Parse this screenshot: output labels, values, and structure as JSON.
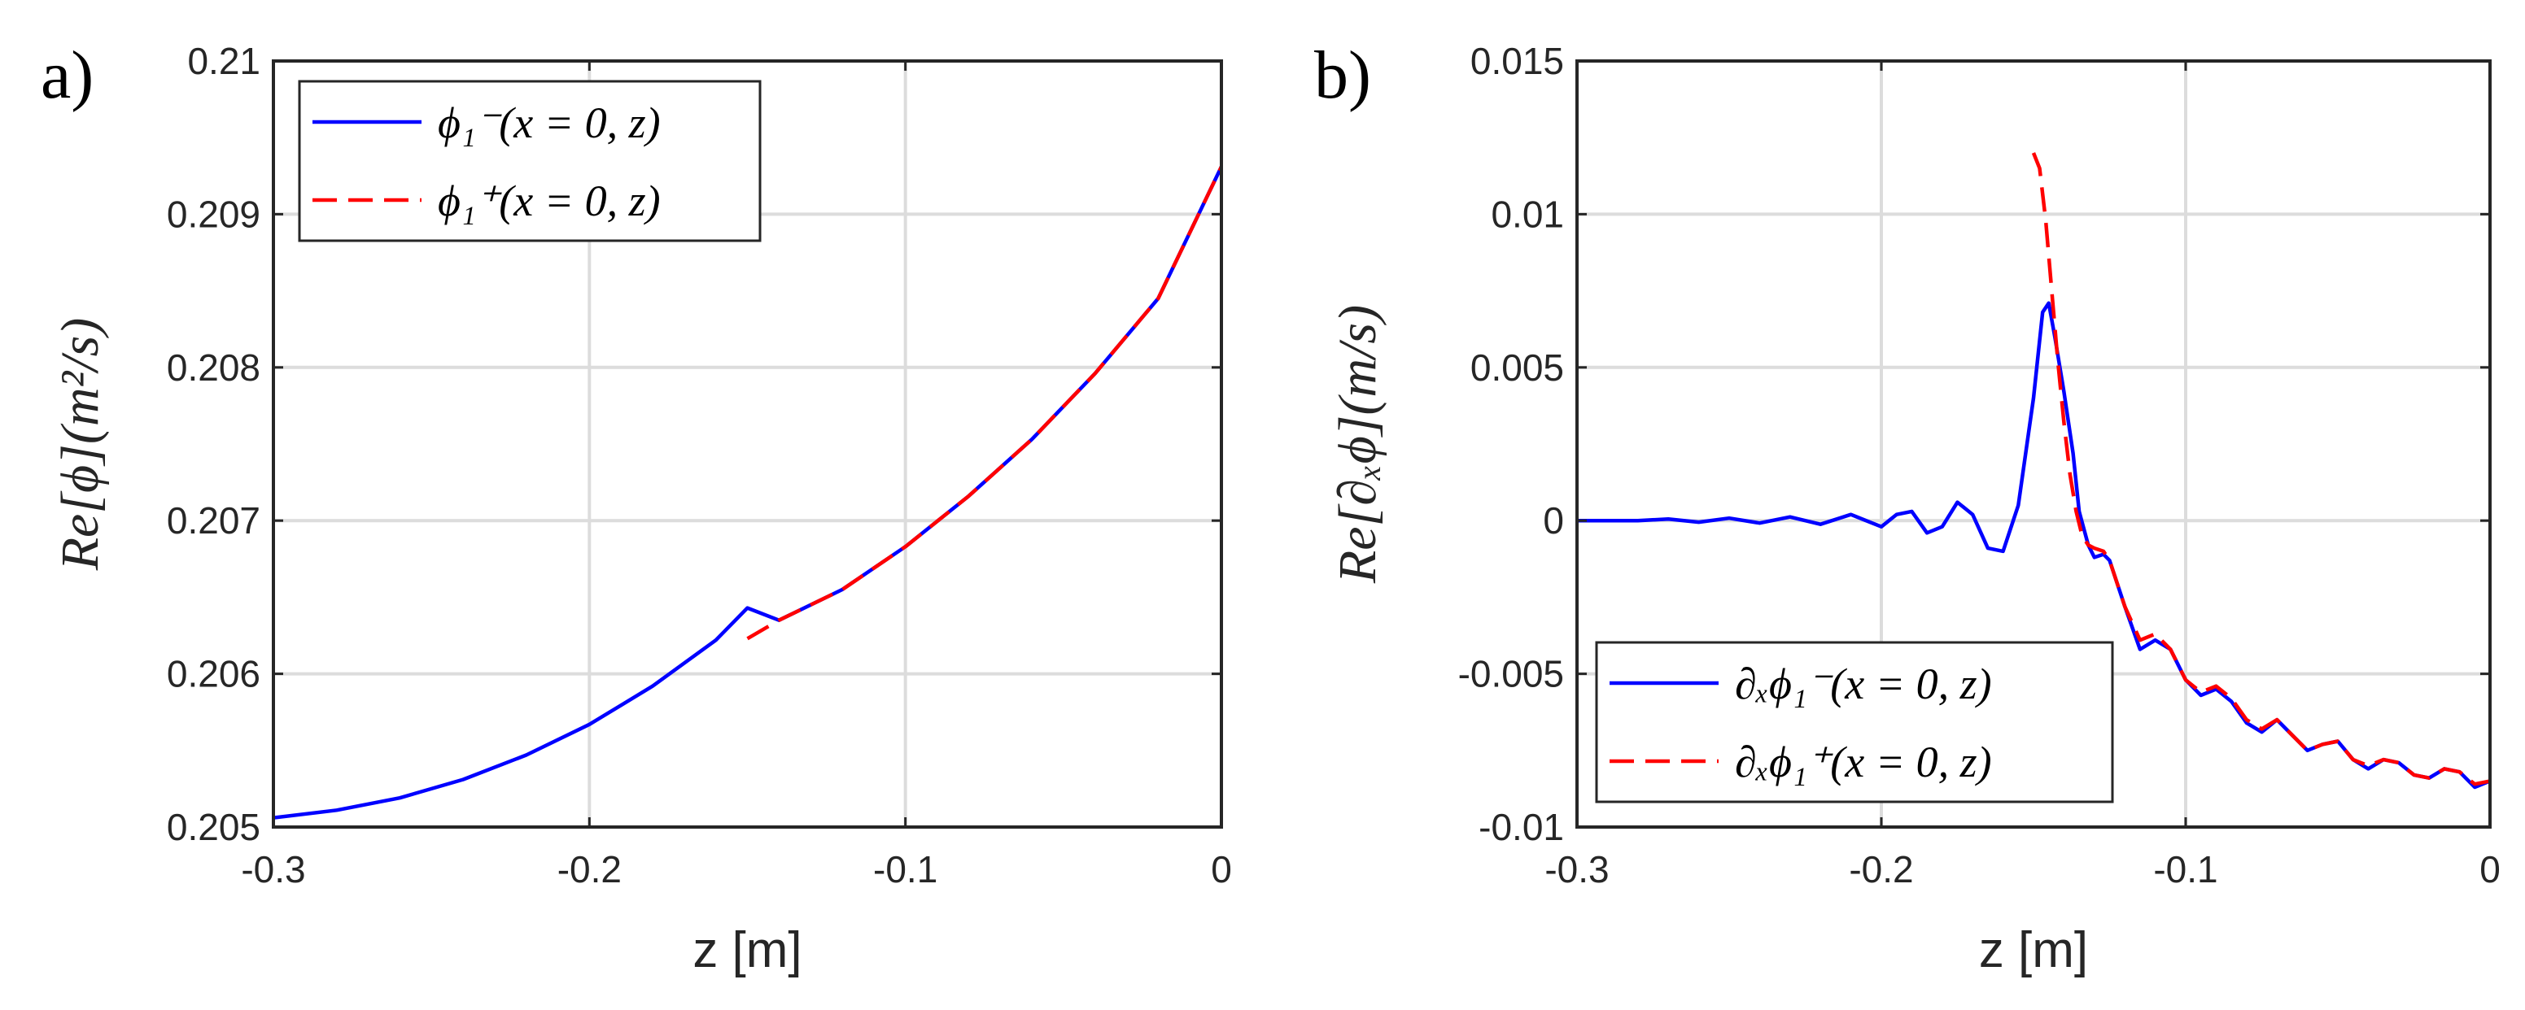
{
  "chart_data": [
    {
      "type": "line",
      "panel_label": "a)",
      "xlabel": "z [m]",
      "ylabel": "Re[ϕ](m²/s)",
      "xlim": [
        -0.3,
        0
      ],
      "ylim": [
        0.205,
        0.21
      ],
      "xticks": [
        -0.3,
        -0.2,
        -0.1,
        0
      ],
      "xtick_labels": [
        "-0.3",
        "-0.2",
        "-0.1",
        "0"
      ],
      "yticks": [
        0.205,
        0.206,
        0.207,
        0.208,
        0.209,
        0.21
      ],
      "ytick_labels": [
        "0.205",
        "0.206",
        "0.207",
        "0.208",
        "0.209",
        "0.21"
      ],
      "grid": true,
      "legend_position": "top-left",
      "series": [
        {
          "name": "ϕ₁⁻(x = 0, z)",
          "color": "#0000ff",
          "dash": "solid",
          "x": [
            -0.3,
            -0.28,
            -0.26,
            -0.24,
            -0.22,
            -0.2,
            -0.18,
            -0.16,
            -0.15,
            -0.14,
            -0.12,
            -0.1,
            -0.08,
            -0.06,
            -0.04,
            -0.02,
            0
          ],
          "values": [
            0.20506,
            0.20511,
            0.20519,
            0.20531,
            0.20547,
            0.20567,
            0.20592,
            0.20622,
            0.20643,
            0.20635,
            0.20655,
            0.20683,
            0.20716,
            0.20753,
            0.20796,
            0.20845,
            0.20931
          ]
        },
        {
          "name": "ϕ₁⁺(x = 0, z)",
          "color": "#ff0000",
          "dash": "dashed",
          "x": [
            -0.15,
            -0.14,
            -0.12,
            -0.1,
            -0.08,
            -0.06,
            -0.04,
            -0.02,
            0
          ],
          "values": [
            0.20623,
            0.20635,
            0.20655,
            0.20683,
            0.20716,
            0.20753,
            0.20796,
            0.20845,
            0.20931
          ]
        }
      ]
    },
    {
      "type": "line",
      "panel_label": "b)",
      "xlabel": "z [m]",
      "ylabel": "Re[∂ₓϕ](m/s)",
      "xlim": [
        -0.3,
        0
      ],
      "ylim": [
        -0.01,
        0.015
      ],
      "xticks": [
        -0.3,
        -0.2,
        -0.1,
        0
      ],
      "xtick_labels": [
        "-0.3",
        "-0.2",
        "-0.1",
        "0"
      ],
      "yticks": [
        -0.01,
        -0.005,
        0,
        0.005,
        0.01,
        0.015
      ],
      "ytick_labels": [
        "-0.01",
        "-0.005",
        "0",
        "0.005",
        "0.01",
        "0.015"
      ],
      "grid": true,
      "legend_position": "bottom-left",
      "series": [
        {
          "name": "∂ₓϕ₁⁻(x = 0, z)",
          "color": "#0000ff",
          "dash": "solid",
          "x": [
            -0.3,
            -0.29,
            -0.28,
            -0.27,
            -0.26,
            -0.25,
            -0.24,
            -0.23,
            -0.22,
            -0.21,
            -0.2,
            -0.195,
            -0.19,
            -0.185,
            -0.18,
            -0.175,
            -0.17,
            -0.165,
            -0.16,
            -0.155,
            -0.15,
            -0.147,
            -0.145,
            -0.143,
            -0.14,
            -0.137,
            -0.135,
            -0.132,
            -0.13,
            -0.127,
            -0.125,
            -0.12,
            -0.115,
            -0.11,
            -0.105,
            -0.1,
            -0.095,
            -0.09,
            -0.085,
            -0.08,
            -0.075,
            -0.07,
            -0.065,
            -0.06,
            -0.055,
            -0.05,
            -0.045,
            -0.04,
            -0.035,
            -0.03,
            -0.025,
            -0.02,
            -0.015,
            -0.01,
            -0.005,
            0
          ],
          "values": [
            0.0,
            0.0,
            0.0,
            5e-05,
            -5e-05,
            8e-05,
            -8e-05,
            0.00012,
            -0.00012,
            0.0002,
            -0.0002,
            0.0002,
            0.0003,
            -0.0004,
            -0.0002,
            0.0006,
            0.0002,
            -0.0009,
            -0.001,
            0.0005,
            0.004,
            0.0068,
            0.0071,
            0.006,
            0.0042,
            0.0022,
            0.0003,
            -0.0008,
            -0.0012,
            -0.0011,
            -0.0013,
            -0.0028,
            -0.0042,
            -0.0039,
            -0.0042,
            -0.0052,
            -0.0057,
            -0.0055,
            -0.0059,
            -0.0066,
            -0.0069,
            -0.0065,
            -0.007,
            -0.0075,
            -0.0073,
            -0.0072,
            -0.0078,
            -0.0081,
            -0.0078,
            -0.0079,
            -0.0083,
            -0.0084,
            -0.0081,
            -0.0082,
            -0.0087,
            -0.0085
          ]
        },
        {
          "name": "∂ₓϕ₁⁺(x = 0, z)",
          "color": "#ff0000",
          "dash": "dashed",
          "x": [
            -0.15,
            -0.148,
            -0.146,
            -0.144,
            -0.142,
            -0.14,
            -0.138,
            -0.136,
            -0.134,
            -0.132,
            -0.13,
            -0.127,
            -0.125,
            -0.12,
            -0.115,
            -0.11,
            -0.105,
            -0.1,
            -0.095,
            -0.09,
            -0.085,
            -0.08,
            -0.075,
            -0.07,
            -0.065,
            -0.06,
            -0.055,
            -0.05,
            -0.045,
            -0.04,
            -0.035,
            -0.03,
            -0.025,
            -0.02,
            -0.015,
            -0.01,
            -0.005,
            0
          ],
          "values": [
            0.012,
            0.0115,
            0.0098,
            0.0075,
            0.0052,
            0.0032,
            0.0015,
            0.0003,
            -0.0005,
            -0.0008,
            -0.0009,
            -0.001,
            -0.0013,
            -0.0028,
            -0.0039,
            -0.0037,
            -0.0042,
            -0.0052,
            -0.0056,
            -0.0054,
            -0.0058,
            -0.0065,
            -0.0068,
            -0.0065,
            -0.007,
            -0.0075,
            -0.0073,
            -0.0072,
            -0.0078,
            -0.008,
            -0.0078,
            -0.0079,
            -0.0083,
            -0.0084,
            -0.0081,
            -0.0082,
            -0.0086,
            -0.0085
          ]
        }
      ]
    }
  ]
}
